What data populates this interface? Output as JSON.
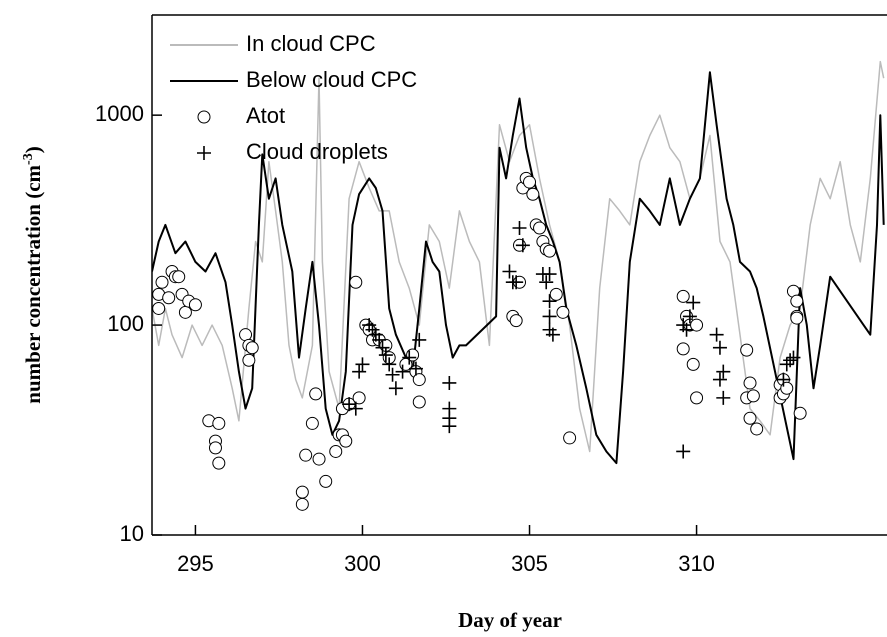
{
  "chart_data": {
    "type": "line",
    "xlabel": "Day of year",
    "ylabel": {
      "text": "number concentration (cm",
      "superscript": "-3",
      "suffix": ")"
    },
    "xlim": [
      293.7,
      315.7
    ],
    "ylim": [
      10,
      3000
    ],
    "ylog": true,
    "xticks": [
      295,
      300,
      305,
      310
    ],
    "yticks": [
      10,
      100,
      1000
    ],
    "legend": "upper left",
    "series": [
      {
        "name": "In cloud CPC",
        "color": "#bbbbbb",
        "mark": "line",
        "x": [
          293.7,
          293.9,
          294.1,
          294.3,
          294.6,
          294.9,
          295.2,
          295.5,
          295.8,
          296.1,
          296.3,
          296.6,
          296.8,
          297.0,
          297.2,
          297.4,
          297.6,
          297.8,
          298.0,
          298.2,
          298.5,
          298.7,
          298.8,
          299.0,
          299.3,
          299.6,
          299.9,
          300.2,
          300.5,
          300.8,
          301.1,
          301.4,
          301.7,
          302.0,
          302.3,
          302.6,
          302.9,
          303.2,
          303.5,
          303.8,
          304.1,
          304.4,
          304.7,
          305.0,
          305.3,
          305.6,
          305.9,
          306.2,
          306.5,
          306.8,
          307.1,
          307.4,
          307.7,
          308.0,
          308.3,
          308.6,
          308.9,
          309.2,
          309.5,
          309.8,
          310.1,
          310.4,
          310.7,
          311.0,
          311.3,
          311.6,
          311.9,
          312.2,
          312.5,
          312.8,
          313.1,
          313.4,
          313.7,
          314.0,
          314.3,
          314.6,
          314.9,
          315.2,
          315.5,
          315.6
        ],
        "values": [
          120,
          80,
          120,
          90,
          70,
          100,
          80,
          100,
          80,
          50,
          35,
          120,
          250,
          200,
          600,
          350,
          200,
          80,
          55,
          45,
          80,
          1500,
          200,
          60,
          40,
          400,
          600,
          450,
          350,
          350,
          200,
          150,
          100,
          300,
          250,
          150,
          350,
          250,
          200,
          80,
          900,
          600,
          800,
          900,
          500,
          300,
          200,
          100,
          40,
          25,
          150,
          400,
          350,
          300,
          600,
          800,
          1000,
          700,
          600,
          400,
          500,
          800,
          250,
          200,
          90,
          40,
          35,
          30,
          70,
          100,
          120,
          300,
          500,
          400,
          600,
          300,
          200,
          500,
          1800,
          1500
        ]
      },
      {
        "name": "Below cloud CPC",
        "color": "#000000",
        "mark": "line",
        "x": [
          293.7,
          293.9,
          294.1,
          294.4,
          294.7,
          295.0,
          295.3,
          295.6,
          295.9,
          296.1,
          296.3,
          296.5,
          296.7,
          296.9,
          297.0,
          297.2,
          297.4,
          297.6,
          297.9,
          298.1,
          298.3,
          298.5,
          298.7,
          298.9,
          299.1,
          299.3,
          299.5,
          299.7,
          299.9,
          300.2,
          300.4,
          300.6,
          300.8,
          301.0,
          301.3,
          301.5,
          301.7,
          301.9,
          302.1,
          302.3,
          302.5,
          302.7,
          302.9,
          303.1,
          304.0,
          304.1,
          304.3,
          304.5,
          304.7,
          304.9,
          305.1,
          305.3,
          305.5,
          305.7,
          305.9,
          306.1,
          306.4,
          306.7,
          307.0,
          307.3,
          307.6,
          307.8,
          308.0,
          308.3,
          308.6,
          308.9,
          309.2,
          309.5,
          309.8,
          310.1,
          310.4,
          310.6,
          310.9,
          311.1,
          311.3,
          311.6,
          311.8,
          312.0,
          312.9,
          313.1,
          313.3,
          313.5,
          313.7,
          314.0,
          315.0,
          315.2,
          315.4,
          315.5,
          315.6
        ],
        "values": [
          180,
          250,
          300,
          220,
          250,
          200,
          180,
          220,
          160,
          100,
          60,
          40,
          50,
          300,
          650,
          400,
          500,
          300,
          180,
          70,
          120,
          200,
          100,
          40,
          30,
          35,
          60,
          300,
          420,
          500,
          450,
          350,
          120,
          90,
          70,
          60,
          120,
          250,
          200,
          180,
          100,
          70,
          80,
          80,
          110,
          700,
          500,
          800,
          1200,
          700,
          500,
          400,
          300,
          250,
          200,
          120,
          80,
          50,
          30,
          25,
          22,
          60,
          200,
          400,
          350,
          300,
          500,
          300,
          400,
          500,
          1600,
          900,
          400,
          300,
          200,
          180,
          150,
          110,
          23,
          150,
          100,
          50,
          80,
          170,
          100,
          90,
          300,
          1000,
          300
        ]
      },
      {
        "name": "Atot",
        "color": "#000000",
        "mark": "circle",
        "x": [
          293.9,
          293.9,
          294.0,
          294.2,
          294.3,
          294.4,
          294.5,
          294.6,
          294.7,
          294.8,
          295.0,
          295.4,
          295.6,
          295.6,
          295.7,
          295.7,
          296.5,
          296.6,
          296.7,
          296.6,
          298.2,
          298.2,
          298.3,
          298.5,
          298.6,
          298.7,
          298.9,
          299.2,
          299.3,
          299.4,
          299.5,
          299.4,
          299.6,
          299.9,
          299.8,
          300.1,
          300.2,
          300.3,
          300.5,
          300.7,
          300.8,
          301.3,
          301.5,
          301.6,
          301.7,
          301.7,
          304.5,
          304.6,
          304.7,
          304.7,
          304.8,
          304.9,
          305.0,
          305.1,
          305.2,
          305.3,
          305.4,
          305.5,
          305.6,
          305.8,
          306.0,
          306.2,
          309.6,
          309.6,
          309.7,
          309.8,
          309.9,
          310.0,
          310.0,
          311.5,
          311.5,
          311.6,
          311.6,
          311.7,
          311.8,
          312.5,
          312.5,
          312.6,
          312.6,
          312.7,
          312.9,
          313.0,
          313.0,
          313.0,
          313.1
        ],
        "values": [
          140,
          120,
          160,
          135,
          180,
          170,
          170,
          140,
          115,
          130,
          125,
          35,
          28,
          26,
          22,
          34,
          90,
          80,
          78,
          68,
          14,
          16,
          24,
          34,
          47,
          23,
          18,
          25,
          30,
          30,
          28,
          40,
          42,
          45,
          160,
          100,
          95,
          85,
          85,
          80,
          70,
          65,
          72,
          60,
          55,
          43,
          110,
          105,
          160,
          240,
          450,
          500,
          480,
          420,
          300,
          290,
          250,
          230,
          225,
          140,
          115,
          29,
          137,
          77,
          110,
          100,
          65,
          45,
          100,
          45,
          76,
          53,
          36,
          46,
          32,
          52,
          45,
          47,
          55,
          50,
          145,
          130,
          110,
          108,
          38
        ]
      },
      {
        "name": "Cloud droplets",
        "color": "#000000",
        "mark": "plus",
        "x": [
          300.0,
          299.9,
          299.8,
          299.6,
          300.2,
          300.3,
          300.4,
          300.5,
          300.6,
          300.7,
          300.8,
          300.9,
          301.0,
          301.2,
          301.4,
          301.6,
          301.7,
          302.6,
          302.6,
          302.6,
          302.6,
          304.4,
          304.5,
          304.6,
          304.7,
          304.8,
          305.4,
          305.5,
          305.6,
          305.6,
          305.6,
          305.7,
          305.6,
          309.6,
          309.6,
          309.7,
          309.8,
          309.9,
          310.6,
          310.7,
          310.8,
          310.7,
          310.8,
          312.6,
          312.7,
          312.8,
          312.9
        ],
        "values": [
          65,
          60,
          40,
          42,
          100,
          95,
          90,
          85,
          78,
          72,
          65,
          58,
          50,
          60,
          70,
          62,
          85,
          53,
          40,
          36,
          33,
          180,
          160,
          160,
          290,
          240,
          175,
          160,
          130,
          110,
          95,
          90,
          175,
          25,
          100,
          95,
          110,
          128,
          90,
          78,
          60,
          55,
          45,
          55,
          65,
          68,
          70
        ]
      }
    ]
  }
}
